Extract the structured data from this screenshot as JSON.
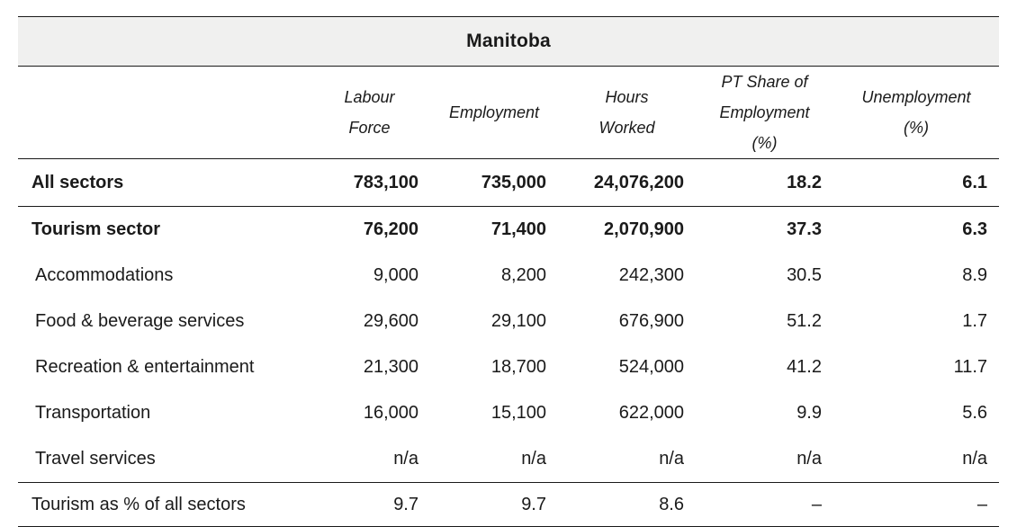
{
  "chart_data": {
    "type": "table",
    "title": "Manitoba",
    "columns": [
      "",
      "Labour Force",
      "Employment",
      "Hours Worked",
      "PT Share of Employment (%)",
      "Unemployment (%)"
    ],
    "rows": [
      [
        "All sectors",
        "783,100",
        "735,000",
        "24,076,200",
        "18.2",
        "6.1"
      ],
      [
        "Tourism sector",
        "76,200",
        "71,400",
        "2,070,900",
        "37.3",
        "6.3"
      ],
      [
        "Accommodations",
        "9,000",
        "8,200",
        "242,300",
        "30.5",
        "8.9"
      ],
      [
        "Food & beverage services",
        "29,600",
        "29,100",
        "676,900",
        "51.2",
        "1.7"
      ],
      [
        "Recreation & entertainment",
        "21,300",
        "18,700",
        "524,000",
        "41.2",
        "11.7"
      ],
      [
        "Transportation",
        "16,000",
        "15,100",
        "622,000",
        "9.9",
        "5.6"
      ],
      [
        "Travel services",
        "n/a",
        "n/a",
        "n/a",
        "n/a",
        "n/a"
      ],
      [
        "Tourism as % of all sectors",
        "9.7",
        "9.7",
        "8.6",
        "–",
        "–"
      ]
    ],
    "layout": {
      "bold_rows": [
        "All sectors",
        "Tourism sector"
      ],
      "indented_rows": [
        "Accommodations",
        "Food & beverage services",
        "Recreation & entertainment",
        "Transportation",
        "Travel services"
      ],
      "value_alignment": "right",
      "header_style": "italic"
    }
  },
  "display": {
    "headers": [
      "Labour\nForce",
      "Employment",
      "Hours\nWorked",
      "PT Share of\nEmployment\n(%)",
      "Unemployment\n(%)"
    ]
  },
  "colors": {
    "title_background": "#f0f0ef",
    "rule_color": "#1a1a1a",
    "text_color": "#1a1a1a",
    "page_background": "#ffffff"
  }
}
